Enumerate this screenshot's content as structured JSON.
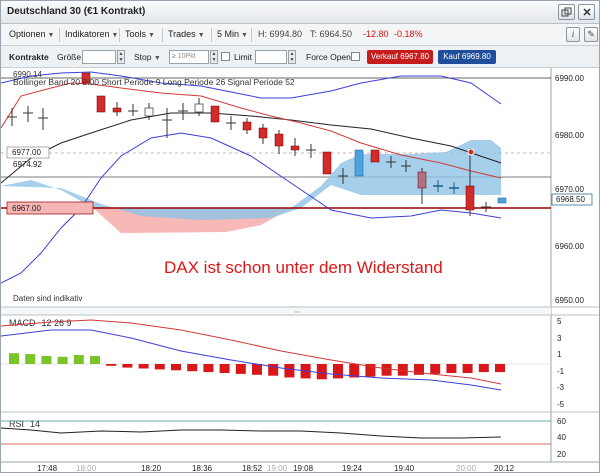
{
  "window": {
    "title": "Deutschland 30 (€1 Kontrakt)"
  },
  "menubar": {
    "optionen": "Optionen",
    "indikatoren": "Indikatoren",
    "tools": "Tools",
    "trades": "Trades",
    "timeframe": "5 Min",
    "high": "H: 6994.80",
    "low": "T: 6964.50",
    "change": "-12.80",
    "change_pct": "-0.18%"
  },
  "orderbar": {
    "kontrakte": "Kontrakte",
    "groesse": "Größe",
    "stop": "Stop",
    "stop_placeholder": "≥ 10Pkt",
    "limit": "Limit",
    "force_open": "Force Open",
    "sell": "Verkauf 6967.80",
    "buy": "Kauf 6969.80"
  },
  "chart": {
    "price_top_label": "6990.14",
    "indicator_legend": "Bollinger Band   20  2.00       Short Periode  9    Long Periode  26   Signal Periode  52",
    "price_levels": [
      "6990.00",
      "6980.00",
      "6970.00",
      "6960.00",
      "6950.00"
    ],
    "tags": {
      "level_6977": "6977.00",
      "level_6974": "6974.92",
      "level_6967": "6967.00",
      "current": "6968.50"
    },
    "annotation": "DAX ist schon unter dem Widerstand",
    "footnote": "Daten sind indikativ",
    "colors": {
      "up": "#4da3e0",
      "down": "#d42a2a",
      "cloud": "#8fc3e6",
      "cloud_red": "#f08a8a",
      "resistance": "#9a0000"
    }
  },
  "macd": {
    "label": "MACD",
    "params": "12  26  9",
    "levels": [
      "5",
      "3",
      "1",
      "-1",
      "-3",
      "-5"
    ]
  },
  "rsi": {
    "label": "RSI",
    "params": "14",
    "levels": [
      "60",
      "40",
      "20"
    ]
  },
  "time_axis": [
    "17:48",
    "18:00",
    "18:20",
    "18:36",
    "18:52",
    "19:00",
    "19:08",
    "19:24",
    "19:40",
    "20:00",
    "20:12"
  ]
}
